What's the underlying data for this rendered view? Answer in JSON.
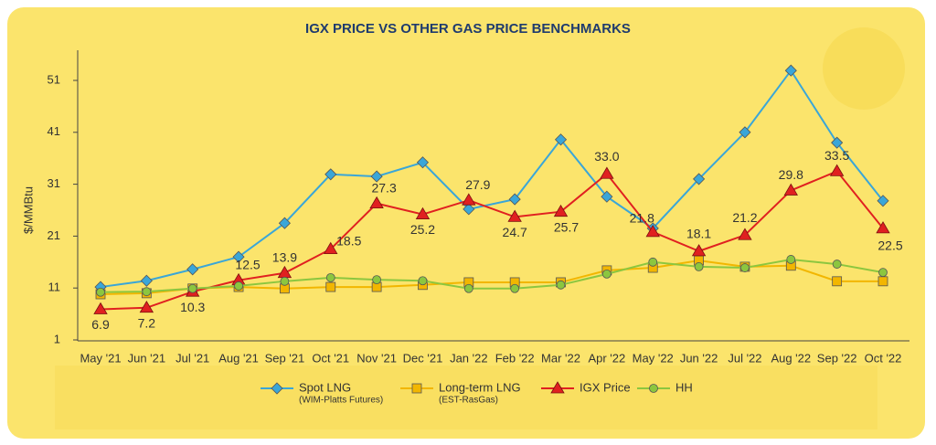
{
  "chart_data": {
    "type": "line",
    "title": "IGX PRICE VS OTHER GAS PRICE BENCHMARKS",
    "y_label": "$/MMBtu",
    "categories": [
      "May '21",
      "Jun '21",
      "Jul '21",
      "Aug '21",
      "Sep '21",
      "Oct '21",
      "Nov '21",
      "Dec '21",
      "Jan '22",
      "Feb '22",
      "Mar '22",
      "Apr '22",
      "May '22",
      "Jun '22",
      "Jul '22",
      "Aug '22",
      "Sep '22",
      "Oct '22"
    ],
    "ylim": [
      1,
      55
    ],
    "yticks": [
      1,
      11,
      21,
      31,
      41,
      51
    ],
    "grid": false,
    "series": [
      {
        "name": "Spot LNG",
        "subtitle": "(WIM-Platts Futures)",
        "color": "#3aa6d8",
        "marker": "diamond",
        "values": [
          11.2,
          12.4,
          14.6,
          17.0,
          23.5,
          32.9,
          32.5,
          35.2,
          26.2,
          28.1,
          39.6,
          28.6,
          22.5,
          32.0,
          41.0,
          52.9,
          39.0,
          27.8
        ]
      },
      {
        "name": "Long-term LNG",
        "subtitle": "(EST-RasGas)",
        "color": "#f2b600",
        "marker": "square",
        "values": [
          9.8,
          10.0,
          10.9,
          11.2,
          10.9,
          11.2,
          11.2,
          11.6,
          12.1,
          12.1,
          12.1,
          14.4,
          14.9,
          16.3,
          15.1,
          15.3,
          12.3,
          12.3
        ]
      },
      {
        "name": "IGX Price",
        "color": "#e02020",
        "marker": "triangle",
        "values": [
          6.9,
          7.2,
          10.3,
          12.5,
          13.9,
          18.5,
          27.3,
          25.2,
          27.9,
          24.7,
          25.7,
          33.0,
          21.8,
          18.1,
          21.2,
          29.8,
          33.5,
          22.5
        ],
        "value_labels": [
          "6.9",
          "7.2",
          "10.3",
          "12.5",
          "13.9",
          "18.5",
          "27.3",
          "25.2",
          "27.9",
          "24.7",
          "25.7",
          "33.0",
          "21.8",
          "18.1",
          "21.2",
          "29.8",
          "33.5",
          "22.5"
        ]
      },
      {
        "name": "HH",
        "color": "#8cc63f",
        "marker": "circle",
        "values": [
          10.2,
          10.3,
          10.9,
          11.4,
          12.3,
          13.0,
          12.6,
          12.4,
          10.9,
          10.9,
          11.6,
          13.7,
          16.0,
          15.1,
          14.9,
          16.5,
          15.6,
          14.0
        ]
      }
    ]
  }
}
